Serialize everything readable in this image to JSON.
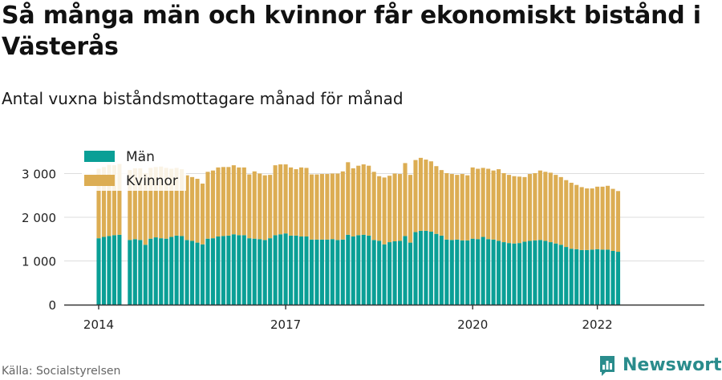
{
  "header": {
    "title": "Så många män och kvinnor får ekonomiskt bistånd i Västerås",
    "subtitle": "Antal vuxna biståndsmottagare månad för månad"
  },
  "footer": {
    "source": "Källa: Socialstyrelsen",
    "brand": "Newsworthy"
  },
  "colors": {
    "men": "#0a9f96",
    "women": "#dcad53",
    "grid": "#dddddd",
    "axis": "#333333",
    "brand": "#2a8c8c"
  },
  "chart_data": {
    "type": "bar",
    "stacked": true,
    "x_unit": "month",
    "x_start": "2014-01",
    "ylim": [
      0,
      3400
    ],
    "y_ticks": [
      {
        "value": 0,
        "label": "0"
      },
      {
        "value": 1000,
        "label": "1 000"
      },
      {
        "value": 2000,
        "label": "2 000"
      },
      {
        "value": 3000,
        "label": "3 000"
      }
    ],
    "x_ticks": [
      {
        "index": 0,
        "label": "2014"
      },
      {
        "index": 36,
        "label": "2017"
      },
      {
        "index": 72,
        "label": "2020"
      },
      {
        "index": 96,
        "label": "2022"
      }
    ],
    "legend_position": "top-left",
    "grid": true,
    "series": [
      {
        "name": "Män",
        "values": [
          1520,
          1550,
          1570,
          1590,
          1600,
          null,
          1480,
          1500,
          1480,
          1370,
          1510,
          1540,
          1520,
          1510,
          1550,
          1580,
          1570,
          1480,
          1460,
          1420,
          1380,
          1510,
          1520,
          1560,
          1570,
          1580,
          1610,
          1590,
          1590,
          1520,
          1510,
          1500,
          1480,
          1520,
          1590,
          1610,
          1630,
          1580,
          1580,
          1560,
          1560,
          1490,
          1490,
          1490,
          1490,
          1500,
          1480,
          1490,
          1600,
          1560,
          1590,
          1600,
          1580,
          1480,
          1460,
          1380,
          1430,
          1450,
          1460,
          1570,
          1420,
          1660,
          1690,
          1690,
          1670,
          1620,
          1580,
          1490,
          1480,
          1490,
          1470,
          1470,
          1510,
          1500,
          1550,
          1500,
          1490,
          1460,
          1430,
          1410,
          1400,
          1410,
          1440,
          1460,
          1470,
          1480,
          1460,
          1430,
          1400,
          1370,
          1320,
          1280,
          1270,
          1250,
          1250,
          1260,
          1270,
          1260,
          1260,
          1230,
          1210
        ],
        "color": "#0a9f96"
      },
      {
        "name": "Kvinnor",
        "values": [
          1590,
          1600,
          1630,
          1600,
          1620,
          null,
          1600,
          1620,
          1640,
          1640,
          1620,
          1610,
          1640,
          1620,
          1560,
          1550,
          1530,
          1480,
          1460,
          1460,
          1390,
          1530,
          1550,
          1580,
          1580,
          1570,
          1580,
          1550,
          1550,
          1460,
          1540,
          1500,
          1480,
          1450,
          1600,
          1600,
          1580,
          1560,
          1520,
          1580,
          1570,
          1490,
          1490,
          1500,
          1500,
          1500,
          1520,
          1560,
          1660,
          1560,
          1590,
          1610,
          1600,
          1560,
          1480,
          1530,
          1520,
          1550,
          1530,
          1670,
          1550,
          1650,
          1670,
          1630,
          1610,
          1550,
          1500,
          1520,
          1510,
          1480,
          1520,
          1490,
          1630,
          1610,
          1580,
          1610,
          1580,
          1640,
          1580,
          1560,
          1540,
          1520,
          1480,
          1530,
          1540,
          1590,
          1580,
          1590,
          1570,
          1550,
          1530,
          1510,
          1470,
          1440,
          1410,
          1400,
          1430,
          1440,
          1460,
          1420,
          1390
        ],
        "color": "#dcad53"
      }
    ]
  }
}
